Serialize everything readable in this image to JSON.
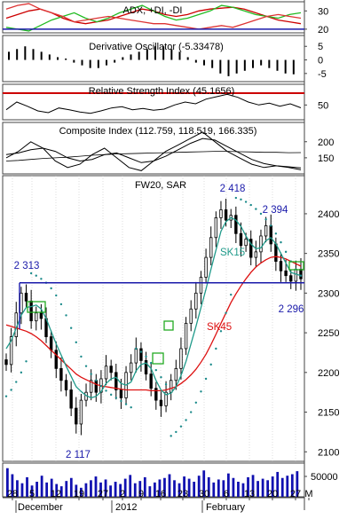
{
  "colors": {
    "background": "#ffffff",
    "border": "#444444",
    "grid": "#c8c8c8",
    "price": "#000000",
    "sar": "#1a8a8a",
    "sma_fast": "#1f9a8a",
    "sma_slow": "#dd1111",
    "support": "#1a1aaa",
    "annotation": "#1a1aaa",
    "rsi_line": "#cc0000",
    "adx": "#cc0000",
    "plus_di": "#22bb22",
    "minus_di": "#dd3333",
    "volume": "#1010b0",
    "box": "#22aa22"
  },
  "chart_data": [
    {
      "type": "line",
      "title": "ADX, +DI, -DI",
      "ylim": [
        18,
        35
      ],
      "yticks": [
        30,
        20
      ],
      "series": [
        {
          "name": "ADX",
          "values": [
            26,
            28,
            30,
            31,
            29,
            26,
            24,
            23,
            24,
            25,
            27,
            29,
            31,
            30,
            28,
            27,
            28,
            30,
            31,
            31.5,
            32,
            31,
            29,
            27,
            25,
            24,
            23
          ]
        },
        {
          "name": "+DI",
          "values": [
            21,
            20,
            19,
            22,
            25,
            27,
            29,
            26,
            24,
            26,
            29,
            31,
            33,
            30,
            27,
            25,
            26,
            28,
            30,
            33,
            32,
            30,
            28,
            27,
            26,
            28,
            29
          ]
        },
        {
          "name": "-DI",
          "values": [
            31,
            33,
            34,
            31,
            29,
            27,
            24,
            25,
            26,
            27,
            26,
            25,
            24,
            23,
            23,
            22,
            21,
            20,
            21,
            22,
            21,
            23,
            25,
            27,
            28,
            27,
            26
          ]
        }
      ],
      "hline": 20
    },
    {
      "type": "bar",
      "title": "Derivative Oscillator (-5.33478)",
      "ylim": [
        -8,
        9
      ],
      "yticks": [
        5,
        0,
        -5
      ],
      "values": [
        3,
        4,
        5,
        4,
        3,
        2,
        1,
        0.5,
        -1,
        -2,
        -3,
        -3,
        -2,
        -1,
        1,
        2,
        3,
        4,
        5,
        5,
        4,
        3,
        1,
        -1,
        -2,
        -3,
        -5,
        -6,
        -5,
        -4,
        -3,
        -2,
        -3,
        -4,
        -5,
        -5.3
      ]
    },
    {
      "type": "line",
      "title": "Relative Strength Index (45.1656)",
      "ylim": [
        25,
        85
      ],
      "yticks": [
        50
      ],
      "hline": 70,
      "values": [
        42,
        55,
        48,
        40,
        37,
        45,
        42,
        38,
        36,
        40,
        45,
        47,
        42,
        44,
        41,
        43,
        50,
        55,
        52,
        60,
        64,
        68,
        63,
        55,
        50,
        53,
        48,
        52,
        45.2
      ]
    },
    {
      "type": "line",
      "title": "Composite Index (112.759, 118.519, 166.335)",
      "ylim": [
        100,
        260
      ],
      "yticks": [
        200,
        150
      ],
      "series": [
        {
          "name": "",
          "values": [
            150,
            170,
            200,
            180,
            140,
            120,
            130,
            160,
            180,
            150,
            120,
            110,
            140,
            170,
            190,
            210,
            230,
            200,
            170,
            150,
            130,
            120,
            125,
            120,
            112.8
          ]
        },
        {
          "name": "",
          "values": [
            160,
            165,
            175,
            180,
            170,
            150,
            140,
            145,
            160,
            165,
            150,
            135,
            140,
            155,
            175,
            195,
            210,
            205,
            185,
            165,
            145,
            132,
            125,
            122,
            118.5
          ]
        },
        {
          "name": "",
          "values": [
            140,
            142,
            145,
            148,
            150,
            152,
            155,
            158,
            160,
            162,
            163,
            164,
            165,
            166,
            167,
            168,
            169,
            170,
            170,
            169,
            168,
            167,
            167,
            166,
            166.3
          ]
        }
      ]
    },
    {
      "type": "candlestick",
      "title": "FW20, SAR",
      "ylim": [
        2088,
        2448
      ],
      "yticks": [
        2400,
        2350,
        2300,
        2250,
        2200,
        2150,
        2100
      ],
      "close": [
        2210,
        2245,
        2275,
        2300,
        2290,
        2265,
        2275,
        2268,
        2245,
        2228,
        2205,
        2190,
        2178,
        2155,
        2135,
        2165,
        2175,
        2190,
        2175,
        2192,
        2208,
        2200,
        2178,
        2168,
        2200,
        2212,
        2230,
        2215,
        2198,
        2180,
        2165,
        2158,
        2175,
        2190,
        2205,
        2230,
        2262,
        2280,
        2300,
        2320,
        2345,
        2370,
        2395,
        2405,
        2392,
        2398,
        2375,
        2360,
        2368,
        2345,
        2352,
        2372,
        2385,
        2362,
        2340,
        2328,
        2322,
        2315,
        2330,
        2318
      ],
      "sma_fast": [
        2230,
        2240,
        2256,
        2272,
        2282,
        2283,
        2285,
        2280,
        2268,
        2252,
        2236,
        2222,
        2208,
        2195,
        2182,
        2176,
        2171,
        2168,
        2170,
        2176,
        2186,
        2192,
        2194,
        2186,
        2184,
        2188,
        2202,
        2210,
        2212,
        2205,
        2190,
        2178,
        2172,
        2174,
        2182,
        2196,
        2214,
        2236,
        2258,
        2282,
        2305,
        2330,
        2354,
        2378,
        2390,
        2395,
        2392,
        2384,
        2372,
        2362,
        2356,
        2357,
        2366,
        2370,
        2362,
        2350,
        2338,
        2326,
        2324,
        2322
      ],
      "sma_slow": [
        2260,
        2258,
        2256,
        2254,
        2252,
        2249,
        2245,
        2240,
        2234,
        2228,
        2222,
        2216,
        2210,
        2204,
        2198,
        2194,
        2191,
        2188,
        2185,
        2183,
        2182,
        2181,
        2180,
        2179,
        2178,
        2178,
        2178,
        2178,
        2178,
        2177,
        2177,
        2177,
        2178,
        2180,
        2182,
        2186,
        2191,
        2197,
        2204,
        2213,
        2223,
        2235,
        2248,
        2262,
        2275,
        2288,
        2299,
        2309,
        2318,
        2326,
        2333,
        2338,
        2342,
        2345,
        2346,
        2345,
        2343,
        2340,
        2337,
        2334
      ],
      "sar": [
        2170,
        2178,
        2188,
        2200,
        2214,
        2325,
        2322,
        2318,
        2313,
        2306,
        2297,
        2286,
        2272,
        2256,
        2238,
        2220,
        2208,
        2198,
        2190,
        2183,
        2177,
        2172,
        2168,
        2164,
        2160,
        2156,
        2230,
        2226,
        2220,
        2212,
        2203,
        2194,
        2185,
        2120,
        2125,
        2132,
        2140,
        2150,
        2162,
        2176,
        2192,
        2210,
        2230,
        2252,
        2275,
        2298,
        2420,
        2418,
        2415,
        2411,
        2406,
        2400,
        2393,
        2385,
        2375,
        2364,
        2352,
        2340,
        2330,
        2322
      ],
      "support": 2313,
      "annotations": [
        "2 418",
        "2 394",
        "2 313",
        "2 296",
        "2 117"
      ],
      "line_labels": [
        "SK15",
        "SK45"
      ]
    },
    {
      "type": "bar",
      "ytick_label": "50000",
      "values": [
        38,
        30,
        22,
        18,
        26,
        15,
        20,
        28,
        19,
        24,
        17,
        14,
        21,
        25,
        16,
        12,
        18,
        22,
        27,
        19,
        23,
        15,
        20,
        17,
        24,
        29,
        18,
        21,
        26,
        14,
        19,
        23,
        25,
        30,
        22,
        18,
        27,
        24,
        20,
        28,
        35,
        26,
        19,
        23,
        22,
        31,
        25,
        20,
        18,
        26,
        29,
        21,
        24,
        22,
        27,
        33,
        25,
        28,
        30,
        34
      ]
    }
  ],
  "x_axis": {
    "day_labels": [
      "28",
      "5",
      "12",
      "19",
      "27",
      "2",
      "9",
      "16",
      "23",
      "30",
      "6",
      "13",
      "20",
      "27",
      "M"
    ],
    "month_labels": [
      "December",
      "2012",
      "February"
    ]
  }
}
